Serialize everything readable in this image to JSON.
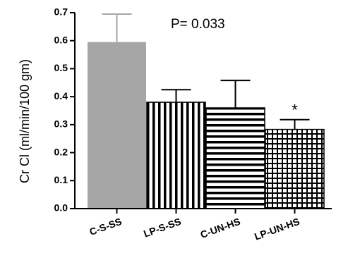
{
  "chart_data": {
    "type": "bar",
    "title": "",
    "xlabel": "",
    "ylabel": "Cr Cl (ml/min/100 gm)",
    "ylim": [
      0,
      0.7
    ],
    "yticks": [
      "0.0",
      "0.1",
      "0.2",
      "0.3",
      "0.4",
      "0.5",
      "0.6",
      "0.7"
    ],
    "categories": [
      "C-S-SS",
      "LP-S-SS",
      "C-UN-HS",
      "LP-UN-HS"
    ],
    "values": [
      0.595,
      0.38,
      0.36,
      0.283
    ],
    "errors": [
      0.1,
      0.045,
      0.098,
      0.035
    ],
    "fills": [
      "solid-gray",
      "vertical-stripes",
      "horizontal-stripes",
      "grid"
    ],
    "colors": {
      "solid": "#a6a6a6",
      "pattern": "#000000",
      "background": "#ffffff"
    },
    "annotation": "P= 0.033",
    "significance_marker": "*",
    "significance_index": 3,
    "grid": false,
    "legend": "none"
  }
}
